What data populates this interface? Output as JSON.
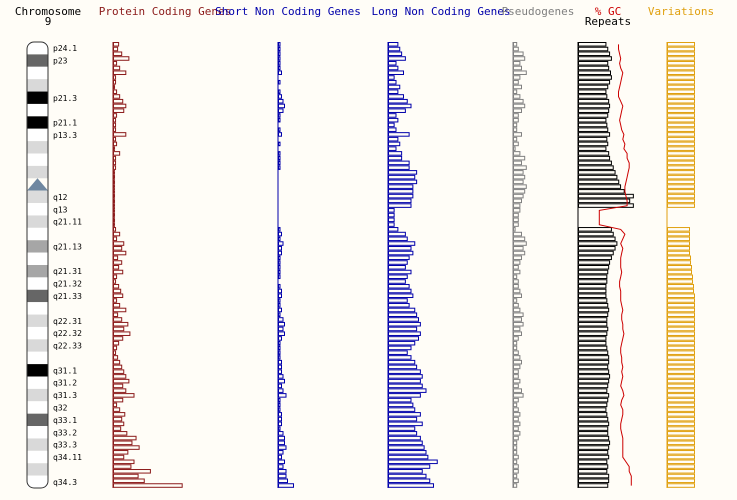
{
  "chart_data": {
    "type": "bar",
    "title": "Chromosome 9",
    "chromosome": {
      "name": "Chromosome",
      "number": "9"
    },
    "bands": [
      {
        "label": "p24.1",
        "stain": "gneg"
      },
      {
        "label": "p23",
        "stain": "gpos75"
      },
      {
        "label": "",
        "stain": "gneg"
      },
      {
        "label": "",
        "stain": "gpos25"
      },
      {
        "label": "p21.3",
        "stain": "gpos100"
      },
      {
        "label": "",
        "stain": "gneg"
      },
      {
        "label": "p21.1",
        "stain": "gpos100"
      },
      {
        "label": "p13.3",
        "stain": "gneg"
      },
      {
        "label": "",
        "stain": "gpos25"
      },
      {
        "label": "",
        "stain": "gneg"
      },
      {
        "label": "",
        "stain": "gpos25"
      },
      {
        "label": "",
        "stain": "acen"
      },
      {
        "label": "q12",
        "stain": "gvar"
      },
      {
        "label": "q13",
        "stain": "gneg"
      },
      {
        "label": "q21.11",
        "stain": "gpos25"
      },
      {
        "label": "",
        "stain": "gneg"
      },
      {
        "label": "q21.13",
        "stain": "gpos50"
      },
      {
        "label": "",
        "stain": "gneg"
      },
      {
        "label": "q21.31",
        "stain": "gpos50"
      },
      {
        "label": "q21.32",
        "stain": "gneg"
      },
      {
        "label": "q21.33",
        "stain": "gpos75"
      },
      {
        "label": "",
        "stain": "gneg"
      },
      {
        "label": "q22.31",
        "stain": "gpos25"
      },
      {
        "label": "q22.32",
        "stain": "gneg"
      },
      {
        "label": "q22.33",
        "stain": "gpos25"
      },
      {
        "label": "",
        "stain": "gneg"
      },
      {
        "label": "q31.1",
        "stain": "gpos100"
      },
      {
        "label": "q31.2",
        "stain": "gneg"
      },
      {
        "label": "q31.3",
        "stain": "gpos25"
      },
      {
        "label": "q32",
        "stain": "gneg"
      },
      {
        "label": "q33.1",
        "stain": "gpos75"
      },
      {
        "label": "q33.2",
        "stain": "gneg"
      },
      {
        "label": "q33.3",
        "stain": "gpos25"
      },
      {
        "label": "q34.11",
        "stain": "gneg"
      },
      {
        "label": "",
        "stain": "gpos25"
      },
      {
        "label": "q34.3",
        "stain": "gneg"
      }
    ],
    "centromere_bin": [
      24,
      27
    ],
    "heterochromatin_bins": [
      28,
      39
    ],
    "series": [
      {
        "name": "Protein Coding Genes",
        "color": "#8b1a1a",
        "max": 80,
        "values": [
          5,
          4,
          8,
          15,
          3,
          6,
          12,
          2,
          2,
          1,
          3,
          6,
          9,
          12,
          10,
          3,
          2,
          2,
          2,
          12,
          2,
          3,
          1,
          6,
          2,
          2,
          2,
          1,
          1,
          1,
          1,
          1,
          1,
          1,
          1,
          1,
          1,
          1,
          1,
          2,
          6,
          3,
          10,
          8,
          12,
          4,
          8,
          5,
          9,
          3,
          2,
          5,
          7,
          9,
          3,
          6,
          12,
          4,
          8,
          14,
          10,
          16,
          9,
          5,
          3,
          2,
          4,
          6,
          8,
          10,
          12,
          15,
          9,
          12,
          20,
          9,
          3,
          6,
          11,
          8,
          10,
          7,
          13,
          22,
          18,
          25,
          14,
          10,
          20,
          17,
          36,
          24,
          30,
          67
        ]
      },
      {
        "name": "Short Non Coding Genes",
        "color": "#0000aa",
        "max": 20,
        "values": [
          1,
          1,
          1,
          1,
          1,
          1,
          2,
          0,
          1,
          0,
          1,
          2,
          3,
          4,
          3,
          1,
          1,
          0,
          1,
          2,
          0,
          1,
          0,
          1,
          1,
          1,
          1,
          0,
          0,
          0,
          0,
          0,
          0,
          0,
          0,
          0,
          0,
          0,
          0,
          1,
          2,
          1,
          3,
          2,
          2,
          1,
          1,
          1,
          1,
          1,
          0,
          1,
          2,
          2,
          1,
          1,
          2,
          1,
          3,
          4,
          3,
          4,
          2,
          1,
          1,
          1,
          1,
          2,
          2,
          2,
          3,
          4,
          2,
          3,
          5,
          1,
          1,
          1,
          2,
          2,
          2,
          1,
          3,
          4,
          4,
          5,
          3,
          2,
          4,
          3,
          5,
          5,
          6,
          10
        ]
      },
      {
        "name": "Long Non Coding Genes",
        "color": "#0000aa",
        "max": 80,
        "values": [
          10,
          12,
          14,
          18,
          8,
          10,
          16,
          6,
          8,
          12,
          10,
          16,
          20,
          24,
          18,
          8,
          10,
          6,
          8,
          22,
          10,
          12,
          8,
          14,
          14,
          22,
          22,
          30,
          28,
          30,
          26,
          26,
          26,
          24,
          24,
          6,
          6,
          6,
          6,
          10,
          18,
          20,
          28,
          24,
          26,
          22,
          20,
          18,
          24,
          20,
          18,
          22,
          24,
          26,
          20,
          22,
          28,
          30,
          32,
          34,
          30,
          34,
          32,
          28,
          24,
          20,
          24,
          28,
          30,
          34,
          36,
          34,
          36,
          40,
          34,
          24,
          26,
          28,
          34,
          30,
          36,
          28,
          30,
          34,
          36,
          38,
          40,
          42,
          52,
          44,
          36,
          40,
          44,
          48
        ]
      },
      {
        "name": "Pseudogenes",
        "color": "#808080",
        "max": 60,
        "values": [
          4,
          6,
          12,
          14,
          8,
          10,
          16,
          8,
          6,
          10,
          4,
          8,
          12,
          14,
          10,
          6,
          6,
          4,
          4,
          10,
          4,
          6,
          2,
          8,
          14,
          10,
          16,
          12,
          14,
          12,
          16,
          14,
          12,
          10,
          8,
          8,
          6,
          6,
          6,
          2,
          10,
          14,
          16,
          12,
          14,
          10,
          8,
          6,
          8,
          4,
          6,
          6,
          8,
          10,
          4,
          6,
          8,
          12,
          10,
          12,
          8,
          10,
          6,
          4,
          4,
          6,
          8,
          10,
          8,
          6,
          6,
          8,
          6,
          10,
          12,
          6,
          4,
          6,
          8,
          6,
          8,
          6,
          8,
          6,
          4,
          4,
          4,
          6,
          4,
          6,
          6,
          4,
          6,
          4
        ]
      },
      {
        "name": "Repeats",
        "color": "#000000",
        "max": 70,
        "values": [
          30,
          32,
          34,
          36,
          32,
          33,
          35,
          36,
          34,
          32,
          30,
          31,
          33,
          34,
          33,
          32,
          30,
          31,
          32,
          34,
          31,
          32,
          30,
          33,
          34,
          36,
          38,
          40,
          42,
          44,
          46,
          50,
          60,
          56,
          60,
          0,
          0,
          0,
          0,
          36,
          38,
          40,
          42,
          40,
          38,
          36,
          34,
          33,
          32,
          31,
          31,
          30,
          30,
          30,
          31,
          32,
          33,
          32,
          31,
          31,
          32,
          31,
          30,
          30,
          31,
          32,
          33,
          33,
          32,
          33,
          34,
          33,
          32,
          31,
          33,
          32,
          31,
          30,
          31,
          32,
          33,
          32,
          32,
          33,
          34,
          33,
          32,
          33,
          31,
          32,
          31,
          33,
          33,
          32
        ]
      },
      {
        "name": "Variations",
        "color": "#e0a010",
        "max": 30,
        "values": [
          27,
          27,
          27,
          27,
          27,
          27,
          27,
          27,
          27,
          27,
          27,
          27,
          27,
          27,
          27,
          27,
          27,
          27,
          27,
          27,
          27,
          27,
          27,
          27,
          27,
          27,
          27,
          27,
          27,
          27,
          27,
          27,
          27,
          27,
          27,
          0,
          0,
          0,
          0,
          22,
          22,
          22,
          22,
          22,
          22,
          23,
          23,
          24,
          24,
          25,
          25,
          26,
          26,
          27,
          27,
          27,
          27,
          27,
          27,
          27,
          27,
          27,
          27,
          27,
          27,
          27,
          27,
          27,
          27,
          27,
          27,
          27,
          27,
          27,
          27,
          27,
          27,
          27,
          27,
          27,
          27,
          27,
          27,
          27,
          27,
          27,
          27,
          27,
          27,
          27,
          27,
          27,
          27,
          27
        ]
      }
    ],
    "gc": {
      "name": "% GC",
      "color": "#cc0000",
      "max": 60,
      "values": [
        38,
        38,
        39,
        40,
        39,
        40,
        42,
        41,
        40,
        39,
        38,
        38,
        40,
        42,
        41,
        40,
        39,
        40,
        41,
        43,
        42,
        44,
        43,
        46,
        46,
        48,
        48,
        47,
        46,
        45,
        44,
        44,
        45,
        46,
        46,
        20,
        20,
        20,
        20,
        40,
        44,
        42,
        40,
        42,
        41,
        40,
        40,
        40,
        41,
        40,
        39,
        39,
        40,
        40,
        40,
        41,
        42,
        41,
        41,
        42,
        42,
        43,
        42,
        41,
        40,
        40,
        41,
        41,
        42,
        41,
        42,
        41,
        40,
        42,
        43,
        41,
        40,
        42,
        42,
        41,
        40,
        40,
        41,
        42,
        42,
        42,
        42,
        42,
        45,
        48,
        48,
        50,
        50,
        50
      ]
    },
    "headers": {
      "chromosome": "Chromosome",
      "protein": "Protein Coding Genes",
      "short": "Short Non Coding Genes",
      "long": "Long Non Coding Genes",
      "pseudo": "Pseudogenes",
      "gc": "% GC",
      "repeats": "Repeats",
      "variations": "Variations"
    }
  }
}
